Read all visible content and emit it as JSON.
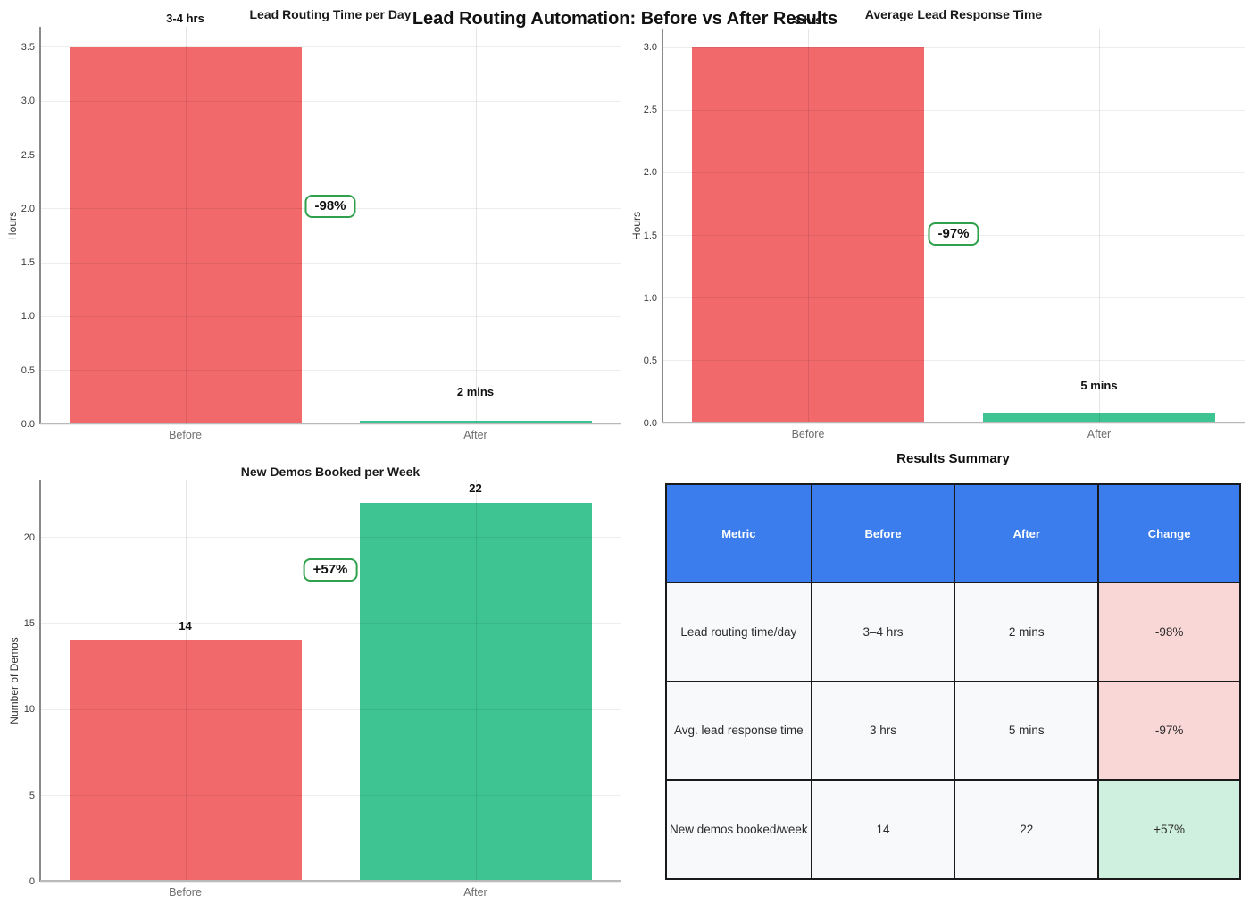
{
  "title": "Lead Routing Automation: Before vs After Results",
  "colors": {
    "before_bar": "#F2696C",
    "after_bar": "#3EC493",
    "annotation_border": "#2FA04C",
    "table_header_bg": "#3B7DED",
    "table_header_text": "#FFFFFF",
    "table_body_bg": "#F8F9FA",
    "change_negative_bg": "#FAD7D7",
    "change_positive_bg": "#CFF0DE"
  },
  "chart_data": [
    {
      "type": "bar",
      "title": "Lead Routing Time per Day",
      "ylabel": "Hours",
      "categories": [
        "Before",
        "After"
      ],
      "values": [
        3.5,
        0.033
      ],
      "bar_labels": [
        "3-4 hrs",
        "2 mins"
      ],
      "bar_colors": [
        "#F2696C",
        "#3EC493"
      ],
      "annotation": "-98%",
      "yticks": [
        "0.0",
        "0.5",
        "1.0",
        "1.5",
        "2.0",
        "2.5",
        "3.0",
        "3.5"
      ],
      "ylim": [
        0,
        3.69
      ],
      "grid": true,
      "legend": "none"
    },
    {
      "type": "bar",
      "title": "Average Lead Response Time",
      "ylabel": "Hours",
      "categories": [
        "Before",
        "After"
      ],
      "values": [
        3.0,
        0.083
      ],
      "bar_labels": [
        "3 hrs",
        "5 mins"
      ],
      "bar_colors": [
        "#F2696C",
        "#3EC493"
      ],
      "annotation": "-97%",
      "yticks": [
        "0.0",
        "0.5",
        "1.0",
        "1.5",
        "2.0",
        "2.5",
        "3.0"
      ],
      "ylim": [
        0,
        3.15
      ],
      "grid": true,
      "legend": "none"
    },
    {
      "type": "bar",
      "title": "New Demos Booked per Week",
      "ylabel": "Number of Demos",
      "categories": [
        "Before",
        "After"
      ],
      "values": [
        14,
        22
      ],
      "bar_labels": [
        "14",
        "22"
      ],
      "bar_colors": [
        "#F2696C",
        "#3EC493"
      ],
      "annotation": "+57%",
      "yticks": [
        "0",
        "5",
        "10",
        "15",
        "20"
      ],
      "ylim": [
        0,
        23.35
      ],
      "grid": true,
      "legend": "none"
    },
    {
      "type": "table",
      "title": "Results Summary",
      "columns": [
        "Metric",
        "Before",
        "After",
        "Change"
      ],
      "rows": [
        [
          "Lead routing time/day",
          "3–4 hrs",
          "2 mins",
          "-98%"
        ],
        [
          "Avg. lead response time",
          "3 hrs",
          "5 mins",
          "-97%"
        ],
        [
          "New demos booked/week",
          "14",
          "22",
          "+57%"
        ]
      ],
      "change_styles": [
        "negative",
        "negative",
        "positive"
      ]
    }
  ]
}
